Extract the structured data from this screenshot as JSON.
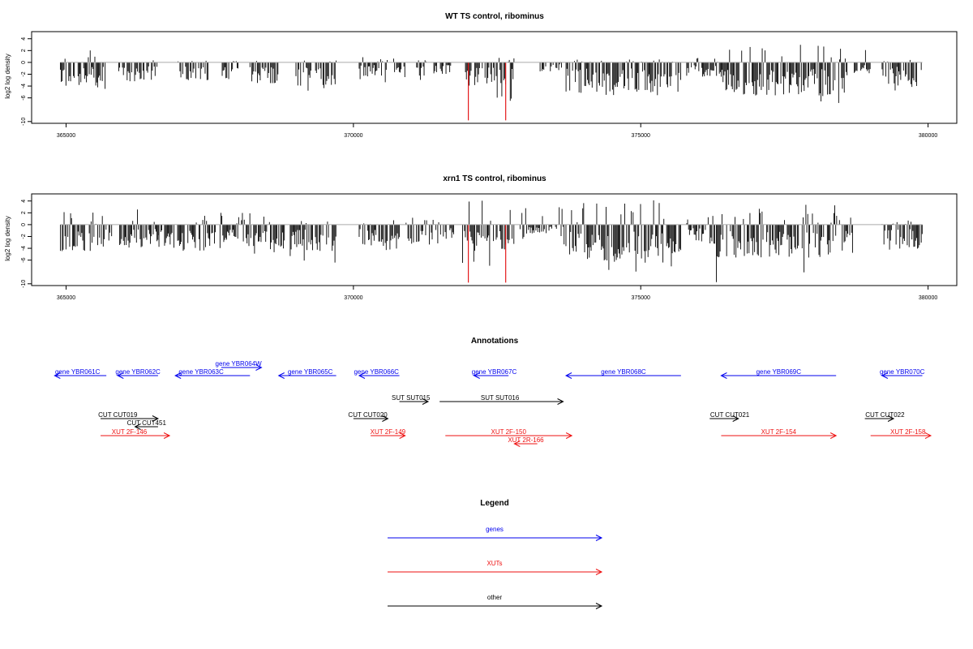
{
  "chart_data": [
    {
      "type": "bar",
      "title": "WT TS control, ribominus",
      "ylabel": "log2 log density",
      "xlim": [
        364400,
        380500
      ],
      "ylim": [
        -10.3,
        5.2
      ],
      "xticks": [
        365000,
        370000,
        375000,
        380000
      ],
      "yticks": [
        4,
        2,
        0,
        -2,
        -4,
        -6,
        -10
      ],
      "baseline": 0,
      "grid": false,
      "segments": [
        {
          "from": 364900,
          "to": 365700,
          "mean": -2.5,
          "min": -4.5,
          "max": 2.2
        },
        {
          "from": 365900,
          "to": 366600,
          "mean": -2.2,
          "min": -3.8,
          "max": 0.5
        },
        {
          "from": 366900,
          "to": 367500,
          "mean": -2.0,
          "min": -3.0,
          "max": 0.3
        },
        {
          "from": 367700,
          "to": 368000,
          "mean": -2.0,
          "min": -3.0,
          "max": 0.3
        },
        {
          "from": 368200,
          "to": 368700,
          "mean": -2.3,
          "min": -3.5,
          "max": 0.3
        },
        {
          "from": 369000,
          "to": 369700,
          "mean": -2.5,
          "min": -5.6,
          "max": 0.5
        },
        {
          "from": 370100,
          "to": 370600,
          "mean": -1.5,
          "min": -3.5,
          "max": 1.0
        },
        {
          "from": 370700,
          "to": 370900,
          "mean": -1.5,
          "min": -3.0,
          "max": 0.8
        },
        {
          "from": 371100,
          "to": 371300,
          "mean": -1.5,
          "min": -3.0,
          "max": 0.5
        },
        {
          "from": 371400,
          "to": 371700,
          "mean": -1.2,
          "min": -2.5,
          "max": 0.8
        },
        {
          "from": 371950,
          "to": 372800,
          "mean": -2.5,
          "min": -7.0,
          "max": 2.5
        },
        {
          "from": 373200,
          "to": 373650,
          "mean": -1.0,
          "min": -2.5,
          "max": 1.6
        },
        {
          "from": 373700,
          "to": 375700,
          "mean": -3.2,
          "min": -6.2,
          "max": 0.5
        },
        {
          "from": 375800,
          "to": 376400,
          "mean": -1.5,
          "min": -3.0,
          "max": 0.8
        },
        {
          "from": 376400,
          "to": 378600,
          "mean": -3.5,
          "min": -7.2,
          "max": 3.0
        },
        {
          "from": 378700,
          "to": 379000,
          "mean": -1.0,
          "min": -2.0,
          "max": 2.8
        },
        {
          "from": 379200,
          "to": 379900,
          "mean": -2.5,
          "min": -4.8,
          "max": 0.5
        }
      ],
      "highlights": [
        {
          "x": 372000,
          "y": -9.8,
          "color": "#e41a1c"
        },
        {
          "x": 372650,
          "y": -9.8,
          "color": "#e41a1c"
        }
      ]
    },
    {
      "type": "bar",
      "title": "xrn1 TS control, ribominus",
      "ylabel": "log2 log density",
      "xlim": [
        364400,
        380500
      ],
      "ylim": [
        -10.3,
        5.2
      ],
      "xticks": [
        365000,
        370000,
        375000,
        380000
      ],
      "yticks": [
        4,
        2,
        0,
        -2,
        -4,
        -6,
        -10
      ],
      "baseline": 0,
      "grid": false,
      "segments": [
        {
          "from": 364900,
          "to": 365800,
          "mean": -2.8,
          "min": -5.5,
          "max": 2.2
        },
        {
          "from": 365900,
          "to": 366600,
          "mean": -2.3,
          "min": -4.5,
          "max": 2.6
        },
        {
          "from": 366600,
          "to": 367500,
          "mean": -2.8,
          "min": -5.3,
          "max": 2.0
        },
        {
          "from": 367500,
          "to": 368800,
          "mean": -2.6,
          "min": -5.0,
          "max": 2.0
        },
        {
          "from": 368900,
          "to": 369700,
          "mean": -2.8,
          "min": -7.0,
          "max": 1.5
        },
        {
          "from": 370100,
          "to": 370800,
          "mean": -2.4,
          "min": -4.5,
          "max": 1.0
        },
        {
          "from": 370900,
          "to": 371500,
          "mean": -2.0,
          "min": -3.8,
          "max": 1.5
        },
        {
          "from": 371500,
          "to": 371800,
          "mean": -1.5,
          "min": -3.0,
          "max": 2.3
        },
        {
          "from": 371900,
          "to": 372800,
          "mean": -2.8,
          "min": -7.0,
          "max": 4.2
        },
        {
          "from": 372900,
          "to": 373650,
          "mean": -1.0,
          "min": -2.5,
          "max": 3.0
        },
        {
          "from": 373650,
          "to": 375700,
          "mean": -3.8,
          "min": -8.0,
          "max": 4.6
        },
        {
          "from": 375800,
          "to": 376300,
          "mean": -2.0,
          "min": -3.5,
          "max": 1.5
        },
        {
          "from": 376300,
          "to": 378700,
          "mean": -3.5,
          "min": -9.8,
          "max": 3.6
        },
        {
          "from": 379200,
          "to": 379900,
          "mean": -2.6,
          "min": -4.8,
          "max": 0.8
        }
      ],
      "highlights": [
        {
          "x": 372000,
          "y": -9.8,
          "color": "#e41a1c"
        },
        {
          "x": 372650,
          "y": -9.8,
          "color": "#e41a1c"
        }
      ]
    },
    {
      "type": "other",
      "title": "Annotations",
      "xlim": [
        364400,
        380500
      ],
      "tracks": {
        "gene": 0,
        "sut": 1,
        "cut": 2,
        "xut": 3
      },
      "features": [
        {
          "label": "gene YBR061C",
          "from": 364800,
          "to": 365700,
          "strand": "-",
          "kind": "gene",
          "track": "gene",
          "lab_x": 365200
        },
        {
          "label": "gene YBR062C",
          "from": 365900,
          "to": 366600,
          "strand": "-",
          "kind": "gene",
          "track": "gene",
          "lab_x": 366250
        },
        {
          "label": "gene YBR064W",
          "from": 367700,
          "to": 368400,
          "strand": "+",
          "kind": "gene",
          "track": "gene",
          "lab_x": 368000,
          "raise": 1
        },
        {
          "label": "gene YBR063C",
          "from": 366900,
          "to": 368200,
          "strand": "-",
          "kind": "gene",
          "track": "gene",
          "lab_x": 367350
        },
        {
          "label": "gene YBR065C",
          "from": 368700,
          "to": 369700,
          "strand": "-",
          "kind": "gene",
          "track": "gene",
          "lab_x": 369250
        },
        {
          "label": "gene YBR066C",
          "from": 370100,
          "to": 370800,
          "strand": "-",
          "kind": "gene",
          "track": "gene",
          "lab_x": 370400
        },
        {
          "label": "gene YBR067C",
          "from": 372100,
          "to": 372700,
          "strand": "-",
          "kind": "gene",
          "track": "gene",
          "lab_x": 372450
        },
        {
          "label": "gene YBR068C",
          "from": 373700,
          "to": 375700,
          "strand": "-",
          "kind": "gene",
          "track": "gene",
          "lab_x": 374700
        },
        {
          "label": "gene YBR069C",
          "from": 376400,
          "to": 378400,
          "strand": "-",
          "kind": "gene",
          "track": "gene",
          "lab_x": 377400
        },
        {
          "label": "gene YBR070C",
          "from": 379200,
          "to": 379900,
          "strand": "-",
          "kind": "gene",
          "track": "gene",
          "lab_x": 379550
        },
        {
          "label": "SUT SUT015",
          "from": 370800,
          "to": 371300,
          "strand": "+",
          "kind": "other",
          "track": "sut",
          "lab_x": 371000
        },
        {
          "label": "SUT SUT016",
          "from": 371500,
          "to": 373650,
          "strand": "+",
          "kind": "other",
          "track": "sut",
          "lab_x": 372550
        },
        {
          "label": "CUT CUT019",
          "from": 365600,
          "to": 366600,
          "strand": "+",
          "kind": "other",
          "track": "cut",
          "lab_x": 365900
        },
        {
          "label": "CUT CUT451",
          "from": 366200,
          "to": 366600,
          "strand": "-",
          "kind": "other",
          "track": "cut",
          "lab_x": 366400,
          "lower": 1
        },
        {
          "label": "CUT CUT020",
          "from": 370000,
          "to": 370600,
          "strand": "+",
          "kind": "other",
          "track": "cut",
          "lab_x": 370250
        },
        {
          "label": "CUT CUT021",
          "from": 376200,
          "to": 376700,
          "strand": "+",
          "kind": "other",
          "track": "cut",
          "lab_x": 376550
        },
        {
          "label": "CUT CUT022",
          "from": 378900,
          "to": 379400,
          "strand": "+",
          "kind": "other",
          "track": "cut",
          "lab_x": 379250
        },
        {
          "label": "XUT 2F-146",
          "from": 365600,
          "to": 366800,
          "strand": "+",
          "kind": "xut",
          "track": "xut",
          "lab_x": 366100
        },
        {
          "label": "XUT 2F-149",
          "from": 370300,
          "to": 370900,
          "strand": "+",
          "kind": "xut",
          "track": "xut",
          "lab_x": 370600
        },
        {
          "label": "XUT 2F-150",
          "from": 371600,
          "to": 373800,
          "strand": "+",
          "kind": "xut",
          "track": "xut",
          "lab_x": 372700
        },
        {
          "label": "XUT 2R-166",
          "from": 372800,
          "to": 373200,
          "strand": "-",
          "kind": "xut",
          "track": "xut",
          "lab_x": 373000,
          "lower": 1
        },
        {
          "label": "XUT 2F-154",
          "from": 376400,
          "to": 378400,
          "strand": "+",
          "kind": "xut",
          "track": "xut",
          "lab_x": 377400
        },
        {
          "label": "XUT 2F-158",
          "from": 379000,
          "to": 380500,
          "strand": "+",
          "kind": "xut",
          "track": "xut",
          "lab_x": 379650
        }
      ]
    },
    {
      "type": "other",
      "title": "Legend",
      "entries": [
        {
          "label": "genes",
          "kind": "gene"
        },
        {
          "label": "XUTs",
          "kind": "xut"
        },
        {
          "label": "other",
          "kind": "other"
        }
      ]
    }
  ],
  "colors": {
    "gene": "#0000ee",
    "xut": "#ee1111",
    "other": "#000000",
    "bar": "#000000",
    "baseline": "#aaaaaa",
    "highlight": "#e41a1c"
  }
}
